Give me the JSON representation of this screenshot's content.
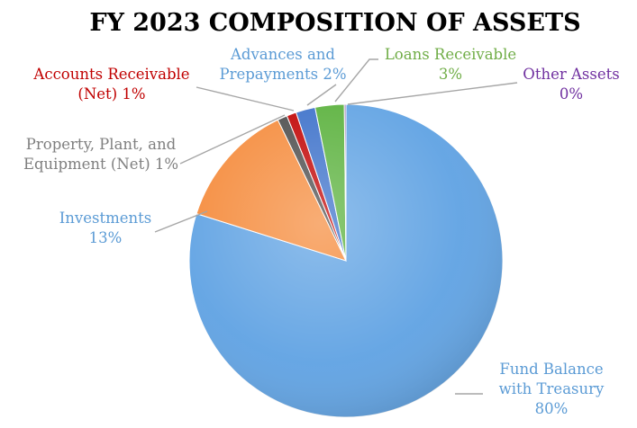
{
  "chart_data": {
    "type": "pie",
    "title": "FY 2023 COMPOSITION OF ASSETS",
    "slices": [
      {
        "name": "Fund Balance with Treasury",
        "value": 80,
        "label_lines": [
          "Fund Balance",
          "with Treasury",
          "80%"
        ],
        "color": "#5fa2e3"
      },
      {
        "name": "Investments",
        "value": 13,
        "label_lines": [
          "Investments",
          "13%"
        ],
        "color": "#f58a3a"
      },
      {
        "name": "Property, Plant, and Equipment (Net)",
        "value": 1,
        "label_lines": [
          "Property, Plant, and",
          "Equipment (Net) 1%"
        ],
        "color": "#4a4a4a"
      },
      {
        "name": "Accounts Receivable (Net)",
        "value": 1,
        "label_lines": [
          "Accounts Receivable",
          "(Net) 1%"
        ],
        "color": "#c00000"
      },
      {
        "name": "Advances and Prepayments",
        "value": 2,
        "label_lines": [
          "Advances and",
          "Prepayments 2%"
        ],
        "color": "#3a6fc9"
      },
      {
        "name": "Loans Receivable",
        "value": 3,
        "label_lines": [
          "Loans Receivable",
          "3%"
        ],
        "color": "#58b03a"
      },
      {
        "name": "Other Assets",
        "value": 0,
        "label_lines": [
          "Other Assets",
          "0%"
        ],
        "color": "#7b4fa0"
      }
    ],
    "label_colors": {
      "Fund Balance with Treasury": "#5b9bd5",
      "Investments": "#5b9bd5",
      "Property, Plant, and Equipment (Net)": "#7f7f7f",
      "Accounts Receivable (Net)": "#c00000",
      "Advances and Prepayments": "#5b9bd5",
      "Loans Receivable": "#70ad47",
      "Other Assets": "#7030a0"
    },
    "start_angle_deg": 0,
    "direction": "clockwise",
    "legend": "none"
  }
}
